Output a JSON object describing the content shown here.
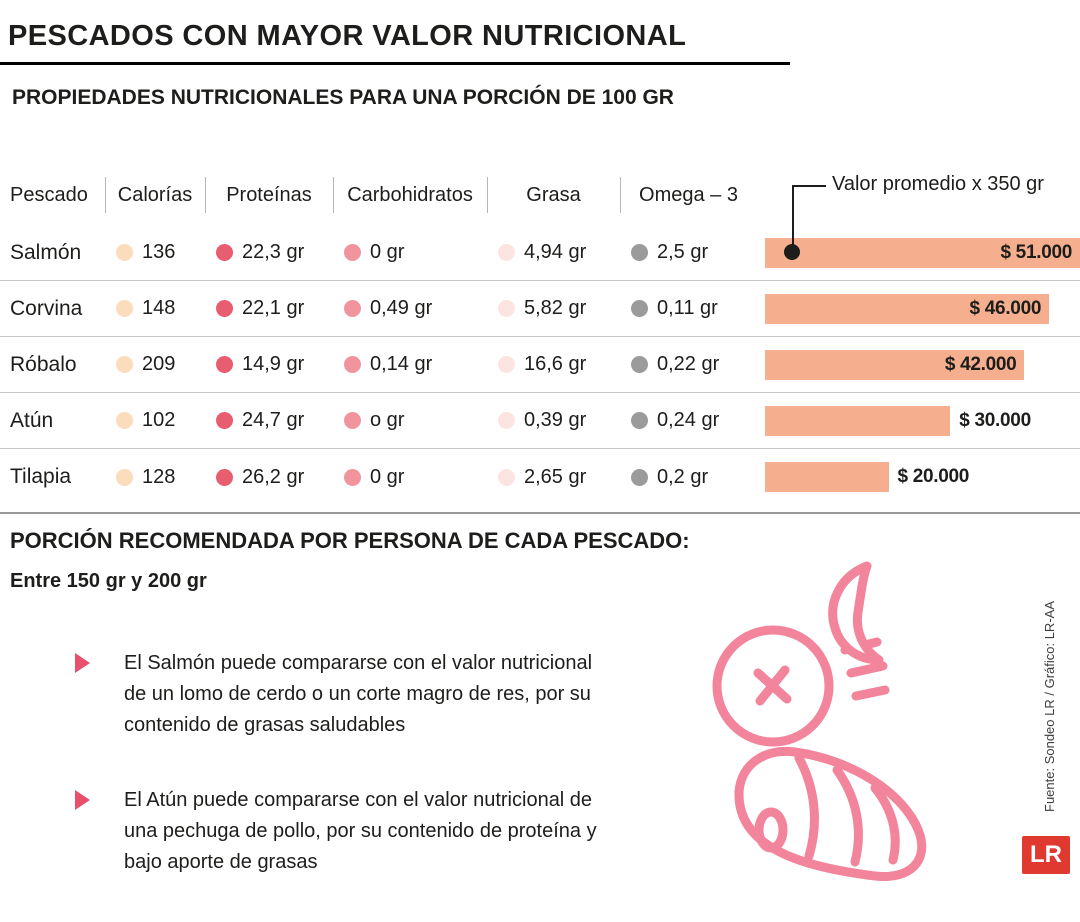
{
  "title": "PESCADOS CON MAYOR VALOR NUTRICIONAL",
  "subtitle": "PROPIEDADES NUTRICIONALES PARA UNA PORCIÓN DE 100 GR",
  "table": {
    "headers": {
      "pescado": "Pescado",
      "calorias": "Calorías",
      "proteinas": "Proteínas",
      "carbohidratos": "Carbohidratos",
      "grasa": "Grasa",
      "omega3": "Omega – 3"
    },
    "annotation": "Valor promedio x 350 gr",
    "rows": [
      {
        "fish": "Salmón",
        "calorias": "136",
        "proteinas": "22,3 gr",
        "carbohidratos": "0 gr",
        "grasa": "4,94 gr",
        "omega3": "2,5 gr",
        "valor": "$ 51.000"
      },
      {
        "fish": "Corvina",
        "calorias": "148",
        "proteinas": "22,1 gr",
        "carbohidratos": "0,49 gr",
        "grasa": "5,82 gr",
        "omega3": "0,11 gr",
        "valor": "$ 46.000"
      },
      {
        "fish": "Róbalo",
        "calorias": "209",
        "proteinas": "14,9 gr",
        "carbohidratos": "0,14 gr",
        "grasa": "16,6 gr",
        "omega3": "0,22 gr",
        "valor": "$ 42.000"
      },
      {
        "fish": "Atún",
        "calorias": "102",
        "proteinas": "24,7 gr",
        "carbohidratos": "o gr",
        "grasa": "0,39 gr",
        "omega3": "0,24 gr",
        "valor": "$ 30.000"
      },
      {
        "fish": "Tilapia",
        "calorias": "128",
        "proteinas": "26,2 gr",
        "carbohidratos": "0 gr",
        "grasa": "2,65 gr",
        "omega3": "0,2 gr",
        "valor": "$ 20.000"
      }
    ]
  },
  "chart_data": {
    "type": "bar",
    "orientation": "horizontal",
    "title": "Valor promedio x 350 gr",
    "categories": [
      "Salmón",
      "Corvina",
      "Róbalo",
      "Atún",
      "Tilapia"
    ],
    "values": [
      51000,
      46000,
      42000,
      30000,
      20000
    ],
    "value_labels": [
      "$ 51.000",
      "$ 46.000",
      "$ 42.000",
      "$ 30.000",
      "$ 20.000"
    ],
    "xlim": [
      0,
      51000
    ],
    "legend": "none",
    "grid": false,
    "bar_color": "#F5AF8E",
    "table_series": [
      {
        "name": "Calorías",
        "values": [
          136,
          148,
          209,
          102,
          128
        ]
      },
      {
        "name": "Proteínas (gr)",
        "values": [
          22.3,
          22.1,
          14.9,
          24.7,
          26.2
        ]
      },
      {
        "name": "Carbohidratos (gr)",
        "values": [
          0,
          0.49,
          0.14,
          0,
          0
        ]
      },
      {
        "name": "Grasa (gr)",
        "values": [
          4.94,
          5.82,
          16.6,
          0.39,
          2.65
        ]
      },
      {
        "name": "Omega-3 (gr)",
        "values": [
          2.5,
          0.11,
          0.22,
          0.24,
          0.2
        ]
      }
    ]
  },
  "recommendation": {
    "title": "PORCIÓN RECOMENDADA POR PERSONA DE CADA PESCADO:",
    "range": "Entre 150 gr y 200 gr",
    "bullets": [
      "El Salmón puede compararse con el valor nutricional de un lomo de cerdo o un corte magro de res, por su contenido de grasas saludables",
      "El Atún puede compararse con el valor nutricional de una pechuga de pollo, por su contenido de proteína y bajo aporte de grasas"
    ]
  },
  "footer": {
    "source": "Fuente: Sondeo LR / Gráfico: LR-AA",
    "logo": "LR"
  },
  "colors": {
    "bar": "#F5AF8E",
    "dot_calorias": "#FBDCBB",
    "dot_proteinas": "#E95D70",
    "dot_carbohidratos": "#F1949E",
    "dot_grasa": "#FBE4E1",
    "dot_omega3": "#9C9B9B",
    "accent": "#E8506E",
    "fish_art": "#F2849B",
    "logo_bg": "#E0392F",
    "row_line": "#C8C8C8",
    "section_line": "#9A9A9A"
  }
}
